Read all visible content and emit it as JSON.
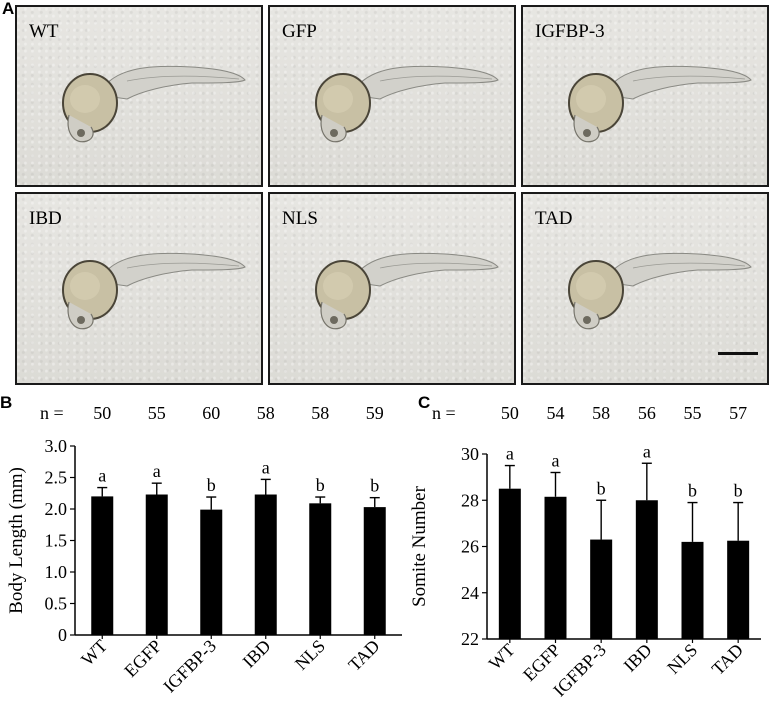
{
  "panels": {
    "a_letter": "A",
    "b_letter": "B",
    "c_letter": "C"
  },
  "images": [
    {
      "label": "WT"
    },
    {
      "label": "GFP"
    },
    {
      "label": "IGFBP-3"
    },
    {
      "label": "IBD"
    },
    {
      "label": "NLS"
    },
    {
      "label": "TAD"
    }
  ],
  "chart_data": [
    {
      "type": "bar",
      "categories": [
        "WT",
        "EGFP",
        "IGFBP-3",
        "IBD",
        "NLS",
        "TAD"
      ],
      "values": [
        2.2,
        2.23,
        1.99,
        2.23,
        2.09,
        2.03
      ],
      "error": [
        0.14,
        0.18,
        0.2,
        0.24,
        0.1,
        0.15
      ],
      "letters": [
        "a",
        "a",
        "b",
        "a",
        "b",
        "b"
      ],
      "n_prefix": "n =",
      "n": [
        "50",
        "55",
        "60",
        "58",
        "58",
        "59"
      ],
      "ylabel": "Body Length (mm)",
      "xlabel": "",
      "ylim": [
        0,
        3.0
      ],
      "yticks": [
        "0",
        "0.5",
        "1.0",
        "1.5",
        "2.0",
        "2.5",
        "3.0"
      ],
      "grid": false
    },
    {
      "type": "bar",
      "categories": [
        "WT",
        "EGFP",
        "IGFBP-3",
        "IBD",
        "NLS",
        "TAD"
      ],
      "values": [
        28.5,
        28.15,
        26.3,
        28.0,
        26.2,
        26.25
      ],
      "error": [
        1.0,
        1.05,
        1.7,
        1.6,
        1.7,
        1.65
      ],
      "letters": [
        "a",
        "a",
        "b",
        "a",
        "b",
        "b"
      ],
      "n_prefix": "n =",
      "n": [
        "50",
        "54",
        "58",
        "56",
        "55",
        "57"
      ],
      "ylabel": "Somite Number",
      "xlabel": "",
      "ylim": [
        22,
        30
      ],
      "yticks": [
        "22",
        "24",
        "26",
        "28",
        "30"
      ],
      "grid": false
    }
  ]
}
